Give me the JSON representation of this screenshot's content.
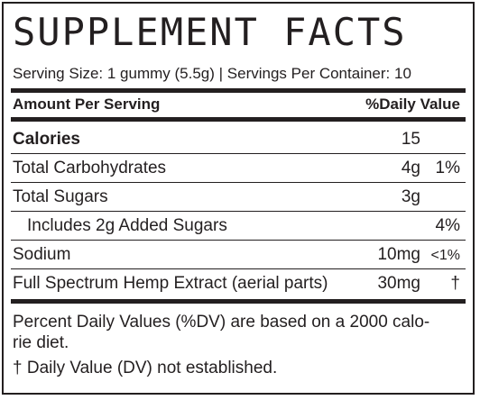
{
  "title": "SUPPLEMENT FACTS",
  "serving": "Serving Size: 1 gummy (5.5g) | Servings Per Container: 10",
  "header": {
    "amount": "Amount Per Serving",
    "dv": "%Daily Value"
  },
  "rows": [
    {
      "name": "Calories",
      "amount": "15",
      "bold": true
    },
    {
      "name": "Total Carbohydrates",
      "amount": "4g",
      "dv": "1%"
    },
    {
      "name": "Total Sugars",
      "amount": "3g"
    },
    {
      "name": "Includes 2g Added Sugars",
      "dv": "4%",
      "indent": true
    },
    {
      "name": "Sodium",
      "amount": "10mg",
      "dv": "<1%"
    },
    {
      "name": "Full Spectrum Hemp Extract (aerial parts)",
      "amount": "30mg",
      "dv": "†"
    }
  ],
  "footnotes": [
    "Percent Daily Values (%DV) are based on a 2000 calo-",
    "rie diet.",
    "† Daily Value (DV) not established."
  ]
}
